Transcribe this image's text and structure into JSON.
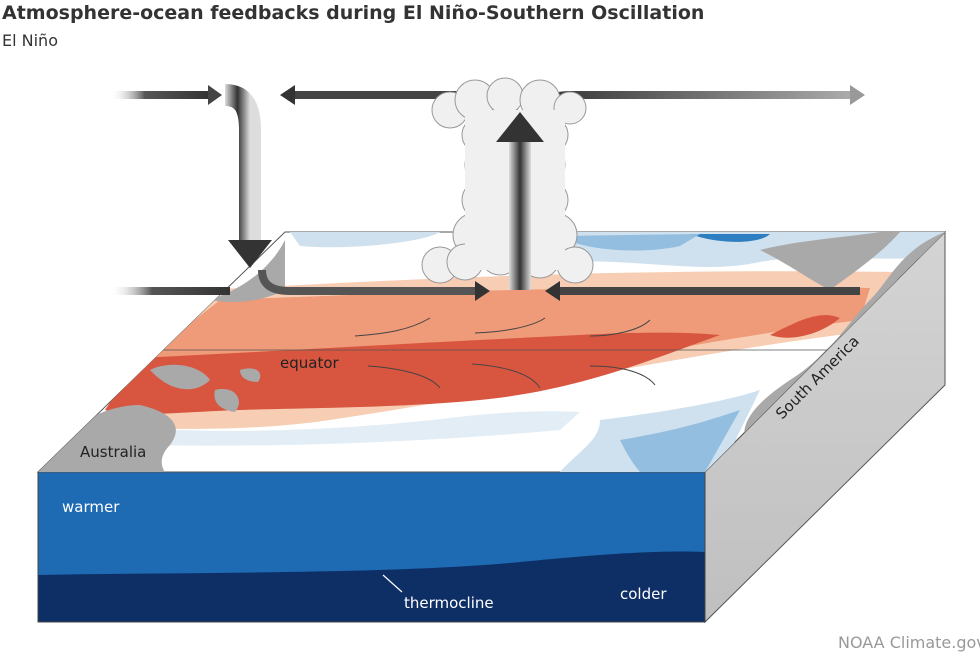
{
  "header": {
    "title": "Atmosphere-ocean feedbacks during El Niño-Southern Oscillation",
    "subtitle": "El Niño"
  },
  "labels": {
    "equator": "equator",
    "australia": "Australia",
    "south_america": "South America",
    "warmer": "warmer",
    "thermocline": "thermocline",
    "colder": "colder"
  },
  "credit": "NOAA Climate.gov",
  "colors": {
    "ocean_upper": "#1e6bb3",
    "ocean_lower": "#0e2f66",
    "warm_light": "#f7cdb4",
    "warm_mid": "#ef9a78",
    "warm_strong": "#d8563f",
    "cool_light": "#cfe1ee",
    "cool_mid": "#93bedf",
    "cool_strong": "#2e7ec2",
    "land": "#a9a9a9",
    "arrow": "#3a3a3a"
  }
}
